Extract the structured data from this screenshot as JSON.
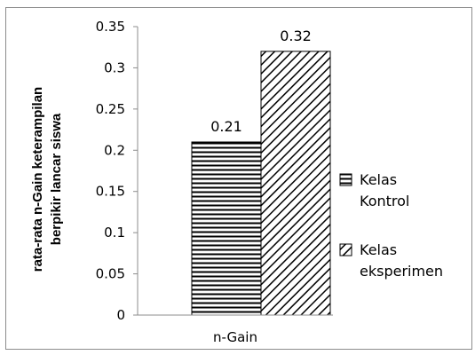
{
  "chart_data": {
    "type": "bar",
    "categories": [
      "n-Gain"
    ],
    "series": [
      {
        "name": "Kelas Kontrol",
        "values": [
          0.21
        ],
        "pattern": "horizontal-lines",
        "legend_lines": [
          "Kelas",
          "Kontrol"
        ]
      },
      {
        "name": "Kelas eksperimen",
        "values": [
          0.32
        ],
        "pattern": "diagonal-lines",
        "legend_lines": [
          "Kelas",
          "eksperimen"
        ]
      }
    ],
    "data_labels": [
      "0.21",
      "0.32"
    ],
    "ylabel_lines": [
      "rata-rata n-Gain  keterampilan",
      "berpikir lancar  siswa"
    ],
    "xlabel": "n-Gain",
    "ylim": [
      0,
      0.35
    ],
    "yticks": [
      "0",
      "0.05",
      "0.1",
      "0.15",
      "0.2",
      "0.25",
      "0.3",
      "0.35"
    ],
    "grid": false,
    "legend_position": "right",
    "colors": {
      "bar_fill": "#ffffff",
      "pattern": "#000000",
      "axis": "#8c8c8c"
    }
  }
}
